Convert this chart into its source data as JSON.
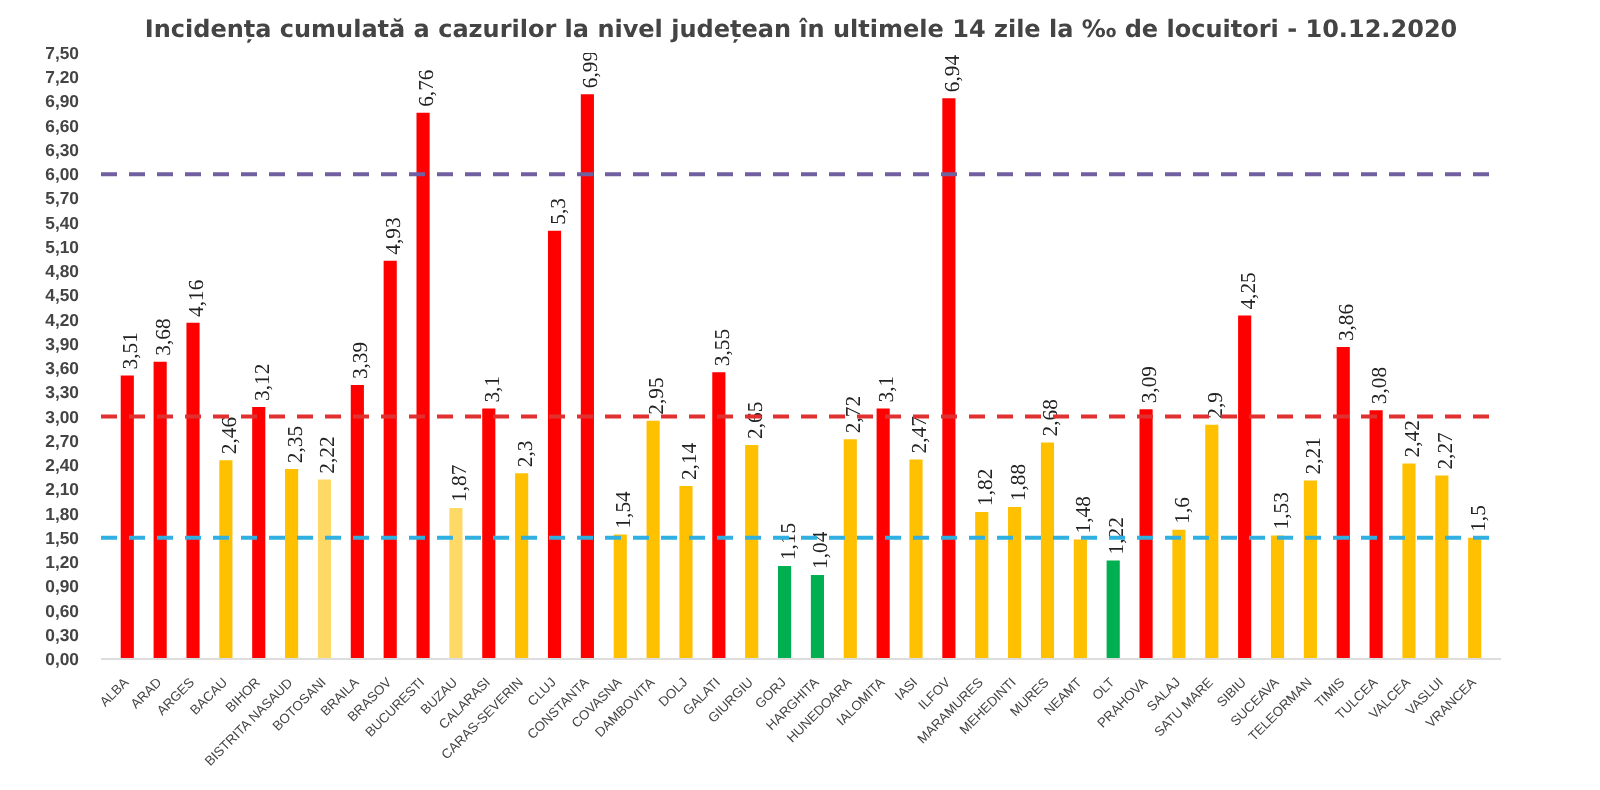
{
  "chart_data": {
    "type": "bar",
    "title": "Incidența cumulată a cazurilor la nivel județean în ultimele 14 zile la ‰ de locuitori - 10.12.2020",
    "categories": [
      "ALBA",
      "ARAD",
      "ARGES",
      "BACAU",
      "BIHOR",
      "BISTRITA NASAUD",
      "BOTOSANI",
      "BRAILA",
      "BRASOV",
      "BUCURESTI",
      "BUZAU",
      "CALARASI",
      "CARAS-SEVERIN",
      "CLUJ",
      "CONSTANTA",
      "COVASNA",
      "DAMBOVITA",
      "DOLJ",
      "GALATI",
      "GIURGIU",
      "GORJ",
      "HARGHITA",
      "HUNEDOARA",
      "IALOMITA",
      "IASI",
      "ILFOV",
      "MARAMURES",
      "MEHEDINTI",
      "MURES",
      "NEAMT",
      "OLT",
      "PRAHOVA",
      "SALAJ",
      "SATU MARE",
      "SIBIU",
      "SUCEAVA",
      "TELEORMAN",
      "TIMIS",
      "TULCEA",
      "VALCEA",
      "VASLUI",
      "VRANCEA"
    ],
    "values": [
      3.51,
      3.68,
      4.16,
      2.46,
      3.12,
      2.35,
      2.22,
      3.39,
      4.93,
      6.76,
      1.87,
      3.1,
      2.3,
      5.3,
      6.99,
      1.54,
      2.95,
      2.14,
      3.55,
      2.65,
      1.15,
      1.04,
      2.72,
      3.1,
      2.47,
      6.94,
      1.82,
      1.88,
      2.68,
      1.48,
      1.22,
      3.09,
      1.6,
      2.9,
      4.25,
      1.53,
      2.21,
      3.86,
      3.08,
      2.42,
      2.27,
      1.5
    ],
    "value_labels": [
      "3,51",
      "3,68",
      "4,16",
      "2,46",
      "3,12",
      "2,35",
      "2,22",
      "3,39",
      "4,93",
      "6,76",
      "1,87",
      "3,1",
      "2,3",
      "5,3",
      "6,99",
      "1,54",
      "2,95",
      "2,14",
      "3,55",
      "2,65",
      "1,15",
      "1,04",
      "2,72",
      "3,1",
      "2,47",
      "6,94",
      "1,82",
      "1,88",
      "2,68",
      "1,48",
      "1,22",
      "3,09",
      "1,6",
      "2,9",
      "4,25",
      "1,53",
      "2,21",
      "3,86",
      "3,08",
      "2,42",
      "2,27",
      "1,5"
    ],
    "colors": [
      "#ff0000",
      "#ff0000",
      "#ff0000",
      "#ffc000",
      "#ff0000",
      "#ffc000",
      "#ffd966",
      "#ff0000",
      "#ff0000",
      "#ff0000",
      "#ffd966",
      "#ff0000",
      "#ffc000",
      "#ff0000",
      "#ff0000",
      "#ffc000",
      "#ffc000",
      "#ffc000",
      "#ff0000",
      "#ffc000",
      "#00b050",
      "#00b050",
      "#ffc000",
      "#ff0000",
      "#ffc000",
      "#ff0000",
      "#ffc000",
      "#ffc000",
      "#ffc000",
      "#ffc000",
      "#00b050",
      "#ff0000",
      "#ffc000",
      "#ffc000",
      "#ff0000",
      "#ffc000",
      "#ffc000",
      "#ff0000",
      "#ff0000",
      "#ffc000",
      "#ffc000",
      "#ffc000"
    ],
    "ylim": [
      0,
      7.5
    ],
    "yticks": [
      {
        "value": 0,
        "label": "0,00"
      },
      {
        "value": 0.3,
        "label": "0,30"
      },
      {
        "value": 0.6,
        "label": "0,60"
      },
      {
        "value": 0.9,
        "label": "0,90"
      },
      {
        "value": 1.2,
        "label": "1,20"
      },
      {
        "value": 1.5,
        "label": "1,50"
      },
      {
        "value": 1.8,
        "label": "1,80"
      },
      {
        "value": 2.1,
        "label": "2,10"
      },
      {
        "value": 2.4,
        "label": "2,40"
      },
      {
        "value": 2.7,
        "label": "2,70"
      },
      {
        "value": 3.0,
        "label": "3,00"
      },
      {
        "value": 3.3,
        "label": "3,30"
      },
      {
        "value": 3.6,
        "label": "3,60"
      },
      {
        "value": 3.9,
        "label": "3,90"
      },
      {
        "value": 4.2,
        "label": "4,20"
      },
      {
        "value": 4.5,
        "label": "4,50"
      },
      {
        "value": 4.8,
        "label": "4,80"
      },
      {
        "value": 5.1,
        "label": "5,10"
      },
      {
        "value": 5.4,
        "label": "5,40"
      },
      {
        "value": 5.7,
        "label": "5,70"
      },
      {
        "value": 6.0,
        "label": "6,00"
      },
      {
        "value": 6.3,
        "label": "6,30"
      },
      {
        "value": 6.6,
        "label": "6,60"
      },
      {
        "value": 6.9,
        "label": "6,90"
      },
      {
        "value": 7.2,
        "label": "7,20"
      },
      {
        "value": 7.5,
        "label": "7,50"
      }
    ],
    "ref_lines": [
      {
        "axis": "y",
        "value": 6.0,
        "color": "#7060a0",
        "line_style": "dashed"
      },
      {
        "axis": "y",
        "value": 3.0,
        "color": "#e03030",
        "line_style": "dashed"
      },
      {
        "axis": "y",
        "value": 1.5,
        "color": "#30b0e0",
        "line_style": "dashed"
      }
    ],
    "grid": false
  }
}
